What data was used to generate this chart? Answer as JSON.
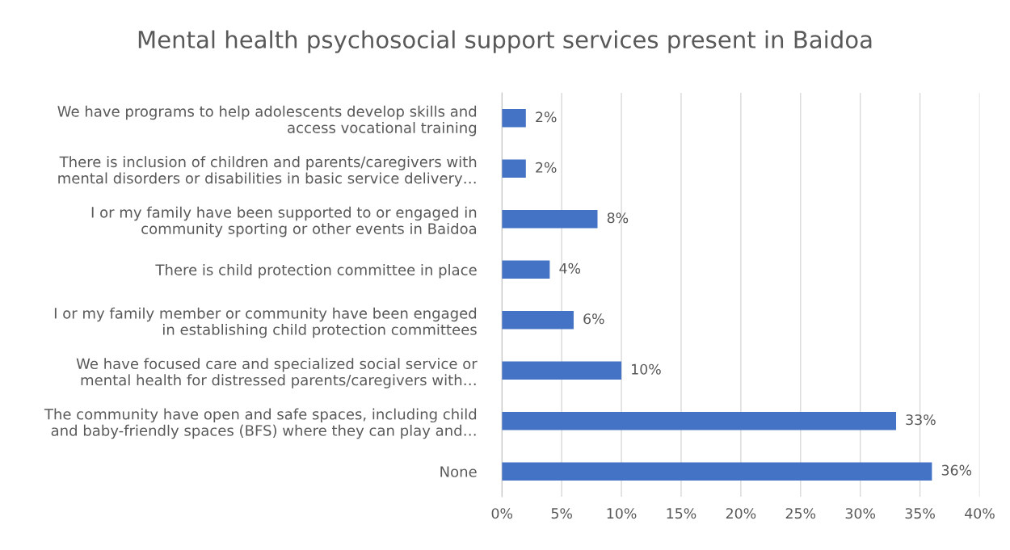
{
  "chart_data": {
    "type": "bar",
    "orientation": "horizontal",
    "title": "Mental health psychosocial support services present in Baidoa",
    "categories": [
      "We have programs to help adolescents develop skills and\naccess vocational training",
      "There is inclusion of children and parents/caregivers with\nmental disorders or disabilities in basic service delivery…",
      "I or my family have been supported to or engaged in\ncommunity sporting or other events in Baidoa",
      "There is child protection committee in place",
      "I or my family member or community have been engaged\nin establishing child protection committees",
      "We have focused care and specialized social service or\nmental health for distressed parents/caregivers with…",
      "The community have open and safe spaces, including child\nand baby-friendly spaces (BFS) where they can play and…",
      "None"
    ],
    "values": [
      2,
      2,
      8,
      4,
      6,
      10,
      33,
      36
    ],
    "value_labels": [
      "2%",
      "2%",
      "8%",
      "4%",
      "6%",
      "10%",
      "33%",
      "36%"
    ],
    "color": "#4472c4",
    "xlim": [
      0,
      40
    ],
    "xticks": [
      {
        "value": 0,
        "label": "0%"
      },
      {
        "value": 5,
        "label": "5%"
      },
      {
        "value": 10,
        "label": "10%"
      },
      {
        "value": 15,
        "label": "15%"
      },
      {
        "value": 20,
        "label": "20%"
      },
      {
        "value": 25,
        "label": "25%"
      },
      {
        "value": 30,
        "label": "30%"
      },
      {
        "value": 35,
        "label": "35%"
      },
      {
        "value": 40,
        "label": "40%"
      }
    ],
    "grid": "x"
  }
}
